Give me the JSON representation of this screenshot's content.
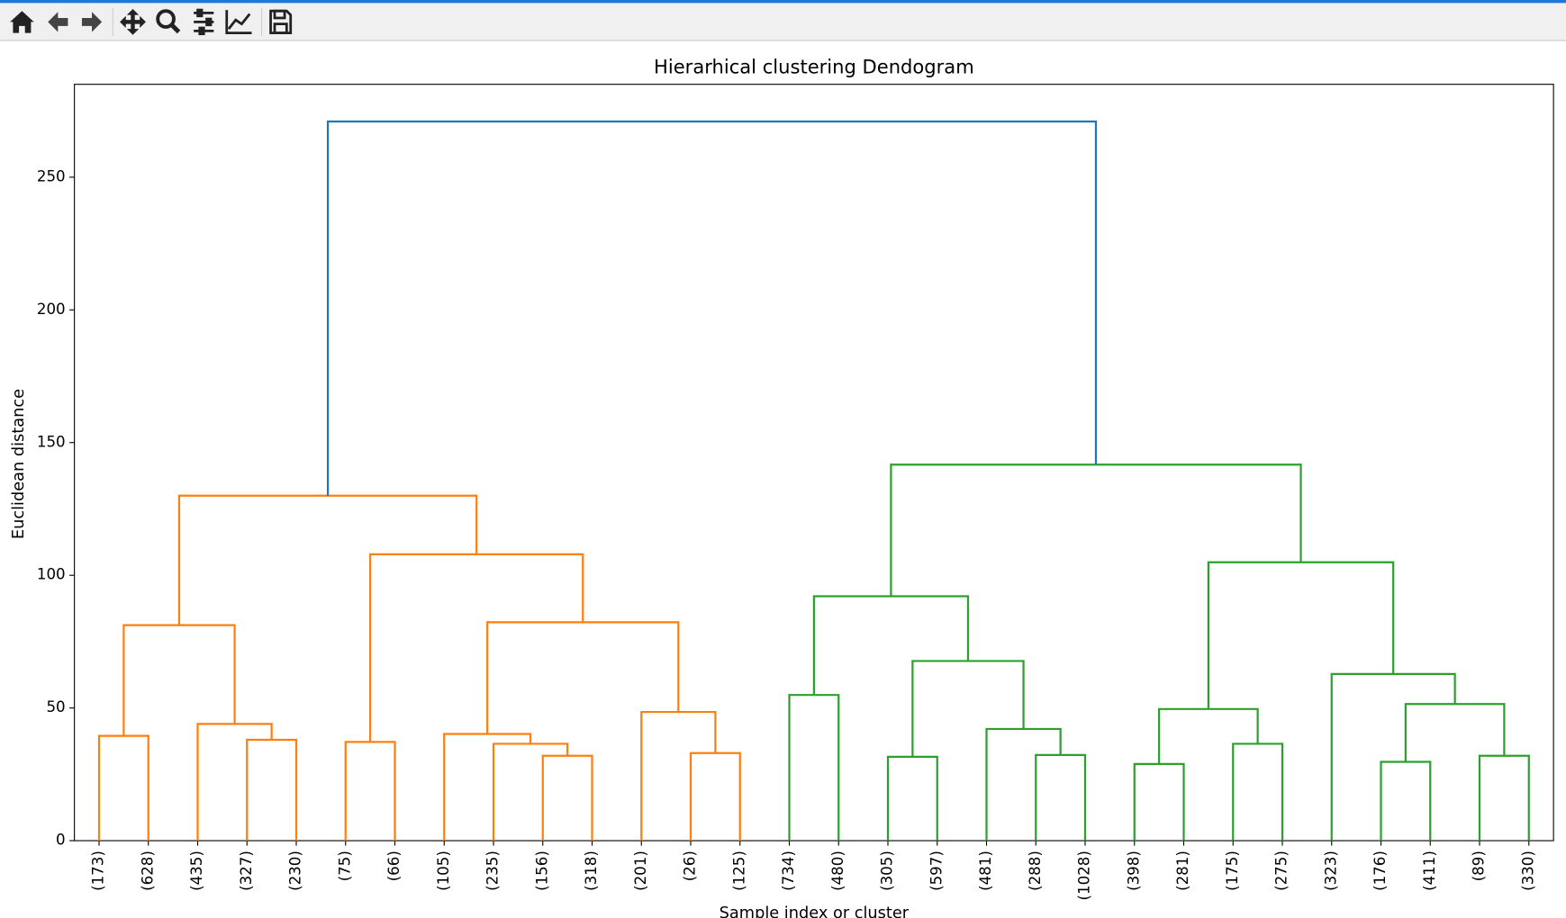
{
  "chart_data": {
    "type": "dendrogram",
    "title": "Hierarhical clustering Dendogram",
    "x_label": "Sample index or cluster",
    "y_label": "Euclidean distance",
    "categories": [
      "(173)",
      "(628)",
      "(435)",
      "(327)",
      "(230)",
      "(75)",
      "(66)",
      "(105)",
      "(235)",
      "(156)",
      "(318)",
      "(201)",
      "(26)",
      "(125)",
      "(734)",
      "(480)",
      "(305)",
      "(597)",
      "(481)",
      "(288)",
      "(1028)",
      "(398)",
      "(281)",
      "(175)",
      "(275)",
      "(323)",
      "(176)",
      "(411)",
      "(89)",
      "(330)"
    ],
    "xlim": [
      0,
      300
    ],
    "ylim": [
      0,
      285
    ],
    "yticks": [
      0,
      50,
      100,
      150,
      200,
      250
    ],
    "links": [
      {
        "x": [
          5,
          5,
          15,
          15
        ],
        "y": [
          0,
          39.5,
          39.5,
          0
        ],
        "color": "#ff7f0e"
      },
      {
        "x": [
          35,
          35,
          45,
          45
        ],
        "y": [
          0,
          38,
          38,
          0
        ],
        "color": "#ff7f0e"
      },
      {
        "x": [
          25,
          25,
          40,
          40
        ],
        "y": [
          0,
          44,
          44,
          38
        ],
        "color": "#ff7f0e"
      },
      {
        "x": [
          10,
          10,
          32.5,
          32.5
        ],
        "y": [
          39.5,
          81.2,
          81.2,
          44
        ],
        "color": "#ff7f0e"
      },
      {
        "x": [
          55,
          55,
          65,
          65
        ],
        "y": [
          0,
          37.2,
          37.2,
          0
        ],
        "color": "#ff7f0e"
      },
      {
        "x": [
          95,
          95,
          105,
          105
        ],
        "y": [
          0,
          32,
          32,
          0
        ],
        "color": "#ff7f0e"
      },
      {
        "x": [
          85,
          85,
          100,
          100
        ],
        "y": [
          0,
          36.5,
          36.5,
          32
        ],
        "color": "#ff7f0e"
      },
      {
        "x": [
          75,
          75,
          92.5,
          92.5
        ],
        "y": [
          0,
          40.2,
          40.2,
          36.5
        ],
        "color": "#ff7f0e"
      },
      {
        "x": [
          125,
          125,
          135,
          135
        ],
        "y": [
          0,
          33,
          33,
          0
        ],
        "color": "#ff7f0e"
      },
      {
        "x": [
          115,
          115,
          130,
          130
        ],
        "y": [
          0,
          48.5,
          48.5,
          33
        ],
        "color": "#ff7f0e"
      },
      {
        "x": [
          83.75,
          83.75,
          122.5,
          122.5
        ],
        "y": [
          40.2,
          82.3,
          82.3,
          48.5
        ],
        "color": "#ff7f0e"
      },
      {
        "x": [
          60,
          60,
          103.125,
          103.125
        ],
        "y": [
          37.2,
          107.9,
          107.9,
          82.3
        ],
        "color": "#ff7f0e"
      },
      {
        "x": [
          21.25,
          21.25,
          81.5625,
          81.5625
        ],
        "y": [
          81.2,
          130,
          130,
          107.9
        ],
        "color": "#ff7f0e"
      },
      {
        "x": [
          145,
          145,
          155,
          155
        ],
        "y": [
          0,
          54.9,
          54.9,
          0
        ],
        "color": "#2ca02c"
      },
      {
        "x": [
          165,
          165,
          175,
          175
        ],
        "y": [
          0,
          31.6,
          31.6,
          0
        ],
        "color": "#2ca02c"
      },
      {
        "x": [
          195,
          195,
          205,
          205
        ],
        "y": [
          0,
          32.3,
          32.3,
          0
        ],
        "color": "#2ca02c"
      },
      {
        "x": [
          185,
          185,
          200,
          200
        ],
        "y": [
          0,
          42.1,
          42.1,
          32.3
        ],
        "color": "#2ca02c"
      },
      {
        "x": [
          170,
          170,
          192.5,
          192.5
        ],
        "y": [
          31.6,
          67.7,
          67.7,
          42.1
        ],
        "color": "#2ca02c"
      },
      {
        "x": [
          150,
          150,
          181.25,
          181.25
        ],
        "y": [
          54.9,
          92.1,
          92.1,
          67.7
        ],
        "color": "#2ca02c"
      },
      {
        "x": [
          215,
          215,
          225,
          225
        ],
        "y": [
          0,
          28.9,
          28.9,
          0
        ],
        "color": "#2ca02c"
      },
      {
        "x": [
          235,
          235,
          245,
          245
        ],
        "y": [
          0,
          36.5,
          36.5,
          0
        ],
        "color": "#2ca02c"
      },
      {
        "x": [
          220,
          220,
          240,
          240
        ],
        "y": [
          28.9,
          49.6,
          49.6,
          36.5
        ],
        "color": "#2ca02c"
      },
      {
        "x": [
          265,
          265,
          275,
          275
        ],
        "y": [
          0,
          29.7,
          29.7,
          0
        ],
        "color": "#2ca02c"
      },
      {
        "x": [
          285,
          285,
          295,
          295
        ],
        "y": [
          0,
          32,
          32,
          0
        ],
        "color": "#2ca02c"
      },
      {
        "x": [
          270,
          270,
          290,
          290
        ],
        "y": [
          29.7,
          51.5,
          51.5,
          32
        ],
        "color": "#2ca02c"
      },
      {
        "x": [
          255,
          255,
          280,
          280
        ],
        "y": [
          0,
          62.8,
          62.8,
          51.5
        ],
        "color": "#2ca02c"
      },
      {
        "x": [
          230,
          230,
          267.5,
          267.5
        ],
        "y": [
          49.6,
          104.9,
          104.9,
          62.8
        ],
        "color": "#2ca02c"
      },
      {
        "x": [
          165.625,
          165.625,
          248.75,
          248.75
        ],
        "y": [
          92.1,
          141.7,
          141.7,
          104.9
        ],
        "color": "#2ca02c"
      },
      {
        "x": [
          51.40625,
          51.40625,
          207.1875,
          207.1875
        ],
        "y": [
          130,
          271,
          271,
          141.7
        ],
        "color": "#1f77b4"
      }
    ]
  }
}
